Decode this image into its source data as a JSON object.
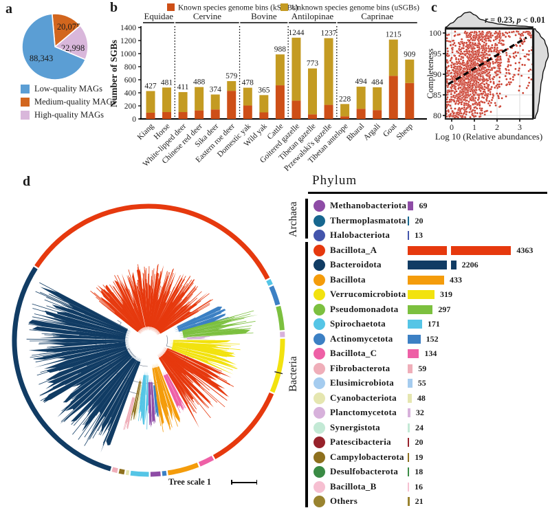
{
  "panels": {
    "a": {
      "letter": "a"
    },
    "b": {
      "letter": "b"
    },
    "c": {
      "letter": "c"
    },
    "d": {
      "letter": "d"
    }
  },
  "chart_data": [
    {
      "panel": "a",
      "type": "pie",
      "labels": [
        "Low-quality MAGs",
        "Medium-quality MAGs",
        "High-quality MAGs"
      ],
      "values": [
        88343,
        20075,
        22998
      ],
      "value_labels": [
        "88,343",
        "20,075",
        "22,998"
      ],
      "colors": [
        "#5B9ED4",
        "#D2661E",
        "#D9B7DB"
      ],
      "legend_position": "bottom"
    },
    {
      "panel": "b",
      "type": "bar",
      "stacked": true,
      "ylabel": "Number of SGBs",
      "ylim": [
        0,
        1400
      ],
      "yticks": [
        0,
        200,
        400,
        600,
        800,
        1000,
        1200,
        1400
      ],
      "series": [
        {
          "name": "Known species genome bins (kSGBs)",
          "color": "#CE4F17",
          "values": [
            95,
            105,
            105,
            130,
            145,
            430,
            205,
            100,
            515,
            280,
            70,
            215,
            40,
            155,
            135,
            660,
            550
          ]
        },
        {
          "name": "Unknown species genome bins (uSGBs)",
          "color": "#C49B22",
          "values": [
            332,
            376,
            306,
            358,
            229,
            149,
            273,
            265,
            473,
            964,
            703,
            1022,
            188,
            339,
            349,
            555,
            359
          ]
        }
      ],
      "totals": [
        427,
        481,
        411,
        488,
        374,
        579,
        478,
        365,
        988,
        1244,
        773,
        1237,
        228,
        494,
        484,
        1215,
        909
      ],
      "categories": [
        "Kiang",
        "Horse",
        "White-lipped deer",
        "Chinese red deer",
        "Sika deer",
        "Eastern roe deer",
        "Domestic yak",
        "Wild yak",
        "Cattle",
        "Goitered gazelle",
        "Tibetan gazelle",
        "Przewalski's gazelle",
        "Tibetan antelope",
        "Bharal",
        "Argali",
        "Goat",
        "Sheep"
      ],
      "groups": [
        {
          "name": "Equidae",
          "from": 0,
          "to": 1
        },
        {
          "name": "Cervine",
          "from": 2,
          "to": 5
        },
        {
          "name": "Bovine",
          "from": 6,
          "to": 8
        },
        {
          "name": "Antilopinae",
          "from": 9,
          "to": 11
        },
        {
          "name": "Caprinae",
          "from": 12,
          "to": 16
        }
      ]
    },
    {
      "panel": "c",
      "type": "scatter",
      "annotation": "r = 0.23, p < 0.01",
      "annotation_parts": {
        "r_var": "r",
        "r_rest": " = 0.23, ",
        "p_var": "p",
        "p_rest": " < 0.01"
      },
      "xlabel": "Log 10 (Relative  abundances)",
      "ylabel": "Completeness",
      "xticks": [
        0,
        1,
        2,
        3
      ],
      "yticks": [
        80,
        85,
        90,
        95,
        100
      ],
      "xlim": [
        -0.27,
        3.58
      ],
      "ylim": [
        79.2,
        101
      ],
      "point_color": "#C93A2A",
      "trend_line": {
        "x1": -0.15,
        "y1": 87.6,
        "x2": 3.3,
        "y2": 98.9,
        "style": "dashed"
      },
      "marginal_densities": "grey, top and right"
    },
    {
      "panel": "d",
      "type": "bar",
      "orientation": "horizontal",
      "title": "Phylum",
      "tree_scale_label": "Tree scale 1",
      "domains": [
        {
          "name": "Archaea",
          "count": 3
        },
        {
          "name": "Bacteria",
          "count": 18
        }
      ],
      "categories": [
        "Methanobacteriota",
        "Thermoplasmatota",
        "Halobacteriota",
        "Bacillota_A",
        "Bacteroidota",
        "Bacillota",
        "Verrucomicrobiota",
        "Pseudomonadota",
        "Spirochaetota",
        "Actinomycetota",
        "Bacillota_C",
        "Fibrobacterota",
        "Elusimicrobiota",
        "Cyanobacteriota",
        "Planctomycetota",
        "Synergistota",
        "Patescibacteria",
        "Campylobacterota",
        "Desulfobacterota",
        "Bacillota_B",
        "Others"
      ],
      "values": [
        69,
        20,
        13,
        4363,
        2206,
        433,
        319,
        297,
        171,
        152,
        134,
        59,
        55,
        48,
        32,
        24,
        20,
        19,
        18,
        16,
        21
      ],
      "colors": [
        "#8E4CA6",
        "#17678F",
        "#4355AC",
        "#E6390E",
        "#113C64",
        "#F49C0B",
        "#F2E20F",
        "#7CC03F",
        "#55C5E6",
        "#3C80C4",
        "#EE60A6",
        "#EFAEB9",
        "#A5CCEF",
        "#E5E6B0",
        "#D7B1DB",
        "#C3E9D5",
        "#97222B",
        "#8E701E",
        "#3A8B45",
        "#F6BFD1",
        "#99832F"
      ]
    }
  ]
}
